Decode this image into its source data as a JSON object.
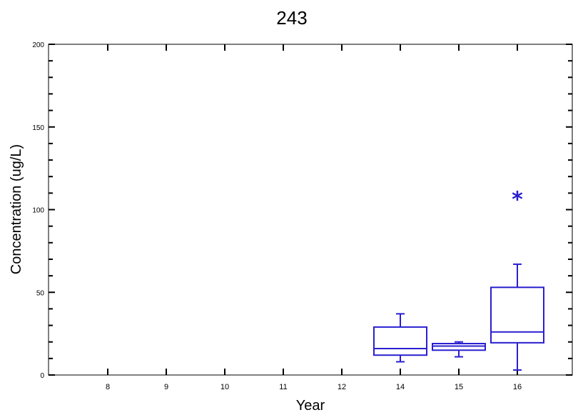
{
  "chart_data": {
    "type": "boxplot",
    "title": "243",
    "xlabel": "Year",
    "ylabel": "Concentration (ug/L)",
    "x_ticks": [
      "8",
      "9",
      "10",
      "11",
      "12",
      "14",
      "15",
      "16"
    ],
    "y_ticks": [
      0,
      50,
      100,
      150,
      200
    ],
    "ylim": [
      0,
      200
    ],
    "grid": false,
    "color": "#2a1fd0",
    "boxes": [
      {
        "category": "14",
        "whisker_low": 8,
        "q1": 12,
        "median": 16,
        "q3": 29,
        "whisker_high": 37,
        "outliers": []
      },
      {
        "category": "15",
        "whisker_low": 11,
        "q1": 15,
        "median": 17.5,
        "q3": 19,
        "whisker_high": 20,
        "outliers": []
      },
      {
        "category": "16",
        "whisker_low": 3,
        "q1": 19.5,
        "median": 26,
        "q3": 53,
        "whisker_high": 67,
        "outliers": [
          109
        ]
      }
    ]
  }
}
